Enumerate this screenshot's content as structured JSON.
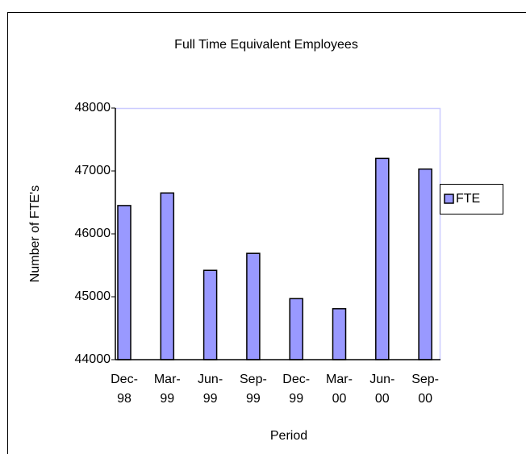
{
  "chart_data": {
    "type": "bar",
    "title": "Full Time Equivalent Employees",
    "x_label": "Period",
    "y_label": "Number of FTE's",
    "categories": [
      "Dec-98",
      "Mar-99",
      "Jun-99",
      "Sep-99",
      "Dec-99",
      "Mar-00",
      "Jun-00",
      "Sep-00"
    ],
    "series": [
      {
        "name": "FTE",
        "color": "#9999ff",
        "values": [
          46450,
          46650,
          45420,
          45690,
          44970,
          44810,
          47200,
          47030
        ]
      }
    ],
    "ylim": [
      44000,
      48000
    ],
    "yticks": [
      44000,
      45000,
      46000,
      47000,
      48000
    ],
    "grid": false,
    "legend": "right"
  }
}
